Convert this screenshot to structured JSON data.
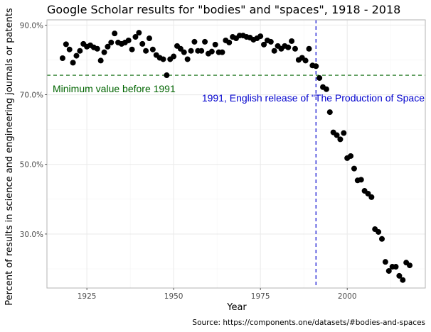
{
  "chart_data": {
    "type": "scatter",
    "title": "Google Scholar results for \"bodies\" and \"spaces\", 1918 - 2018",
    "xlabel": "Year",
    "ylabel": "Percent of results in science and engineering journals or patents",
    "caption": "Source: https://components.one/datasets/#bodies-and-spaces",
    "xlim": [
      1913.5,
      2022.5
    ],
    "ylim": [
      14.5,
      91.5
    ],
    "x_ticks": [
      1925,
      1950,
      1975,
      2000
    ],
    "y_ticks": [
      30,
      50,
      70,
      90
    ],
    "y_tick_labels": [
      "30.0%",
      "50.0%",
      "70.0%",
      "90.0%"
    ],
    "grid": true,
    "colors": {
      "points": "#000000",
      "min_line": "#006400",
      "release_line": "#0000cd",
      "grid_major": "#ebebeb",
      "grid_minor": "#f4f4f4",
      "panel_border": "#b3b3b3"
    },
    "reference_lines": [
      {
        "orientation": "horizontal",
        "value": 75.6,
        "label": "Minimum value before 1991",
        "color": "#006400"
      },
      {
        "orientation": "vertical",
        "value": 1991,
        "label": "1991, English release of \"The Production of Space",
        "color": "#0000cd"
      }
    ],
    "points": [
      {
        "x": 1918,
        "y": 80.5
      },
      {
        "x": 1919,
        "y": 84.5
      },
      {
        "x": 1920,
        "y": 83.0
      },
      {
        "x": 1921,
        "y": 79.2
      },
      {
        "x": 1922,
        "y": 81.2
      },
      {
        "x": 1923,
        "y": 82.6
      },
      {
        "x": 1924,
        "y": 84.6
      },
      {
        "x": 1925,
        "y": 83.8
      },
      {
        "x": 1926,
        "y": 84.2
      },
      {
        "x": 1927,
        "y": 83.6
      },
      {
        "x": 1928,
        "y": 83.2
      },
      {
        "x": 1929,
        "y": 79.8
      },
      {
        "x": 1930,
        "y": 82.2
      },
      {
        "x": 1931,
        "y": 83.8
      },
      {
        "x": 1932,
        "y": 85.0
      },
      {
        "x": 1933,
        "y": 87.6
      },
      {
        "x": 1934,
        "y": 85.0
      },
      {
        "x": 1935,
        "y": 84.6
      },
      {
        "x": 1936,
        "y": 85.0
      },
      {
        "x": 1937,
        "y": 85.6
      },
      {
        "x": 1938,
        "y": 83.0
      },
      {
        "x": 1939,
        "y": 86.6
      },
      {
        "x": 1940,
        "y": 87.8
      },
      {
        "x": 1941,
        "y": 84.6
      },
      {
        "x": 1942,
        "y": 82.6
      },
      {
        "x": 1943,
        "y": 86.2
      },
      {
        "x": 1944,
        "y": 83.0
      },
      {
        "x": 1945,
        "y": 81.4
      },
      {
        "x": 1946,
        "y": 80.6
      },
      {
        "x": 1947,
        "y": 80.2
      },
      {
        "x": 1948,
        "y": 75.6
      },
      {
        "x": 1949,
        "y": 80.2
      },
      {
        "x": 1950,
        "y": 81.0
      },
      {
        "x": 1951,
        "y": 84.0
      },
      {
        "x": 1952,
        "y": 83.2
      },
      {
        "x": 1953,
        "y": 82.2
      },
      {
        "x": 1954,
        "y": 80.2
      },
      {
        "x": 1955,
        "y": 82.6
      },
      {
        "x": 1956,
        "y": 85.2
      },
      {
        "x": 1957,
        "y": 82.6
      },
      {
        "x": 1958,
        "y": 82.6
      },
      {
        "x": 1959,
        "y": 85.2
      },
      {
        "x": 1960,
        "y": 81.8
      },
      {
        "x": 1961,
        "y": 82.4
      },
      {
        "x": 1962,
        "y": 84.4
      },
      {
        "x": 1963,
        "y": 82.2
      },
      {
        "x": 1964,
        "y": 82.2
      },
      {
        "x": 1965,
        "y": 85.6
      },
      {
        "x": 1966,
        "y": 85.0
      },
      {
        "x": 1967,
        "y": 86.6
      },
      {
        "x": 1968,
        "y": 86.2
      },
      {
        "x": 1969,
        "y": 87.0
      },
      {
        "x": 1970,
        "y": 87.0
      },
      {
        "x": 1971,
        "y": 86.6
      },
      {
        "x": 1972,
        "y": 86.4
      },
      {
        "x": 1973,
        "y": 85.8
      },
      {
        "x": 1974,
        "y": 86.2
      },
      {
        "x": 1975,
        "y": 86.8
      },
      {
        "x": 1976,
        "y": 84.4
      },
      {
        "x": 1977,
        "y": 85.6
      },
      {
        "x": 1978,
        "y": 85.2
      },
      {
        "x": 1979,
        "y": 82.6
      },
      {
        "x": 1980,
        "y": 84.0
      },
      {
        "x": 1981,
        "y": 83.2
      },
      {
        "x": 1982,
        "y": 84.0
      },
      {
        "x": 1983,
        "y": 83.6
      },
      {
        "x": 1984,
        "y": 85.4
      },
      {
        "x": 1985,
        "y": 83.2
      },
      {
        "x": 1986,
        "y": 80.0
      },
      {
        "x": 1987,
        "y": 80.6
      },
      {
        "x": 1988,
        "y": 79.8
      },
      {
        "x": 1989,
        "y": 83.2
      },
      {
        "x": 1990,
        "y": 78.4
      },
      {
        "x": 1991,
        "y": 78.2
      },
      {
        "x": 1992,
        "y": 74.8
      },
      {
        "x": 1993,
        "y": 72.2
      },
      {
        "x": 1994,
        "y": 71.6
      },
      {
        "x": 1995,
        "y": 65.0
      },
      {
        "x": 1996,
        "y": 59.2
      },
      {
        "x": 1997,
        "y": 58.4
      },
      {
        "x": 1998,
        "y": 57.2
      },
      {
        "x": 1999,
        "y": 59.0
      },
      {
        "x": 2000,
        "y": 51.8
      },
      {
        "x": 2001,
        "y": 52.4
      },
      {
        "x": 2002,
        "y": 48.8
      },
      {
        "x": 2003,
        "y": 45.4
      },
      {
        "x": 2004,
        "y": 45.6
      },
      {
        "x": 2005,
        "y": 42.4
      },
      {
        "x": 2006,
        "y": 41.6
      },
      {
        "x": 2007,
        "y": 40.6
      },
      {
        "x": 2008,
        "y": 31.4
      },
      {
        "x": 2009,
        "y": 30.6
      },
      {
        "x": 2010,
        "y": 28.6
      },
      {
        "x": 2011,
        "y": 22.0
      },
      {
        "x": 2012,
        "y": 19.4
      },
      {
        "x": 2013,
        "y": 20.6
      },
      {
        "x": 2014,
        "y": 20.6
      },
      {
        "x": 2015,
        "y": 18.0
      },
      {
        "x": 2016,
        "y": 16.8
      },
      {
        "x": 2017,
        "y": 21.8
      },
      {
        "x": 2018,
        "y": 21.0
      }
    ]
  }
}
